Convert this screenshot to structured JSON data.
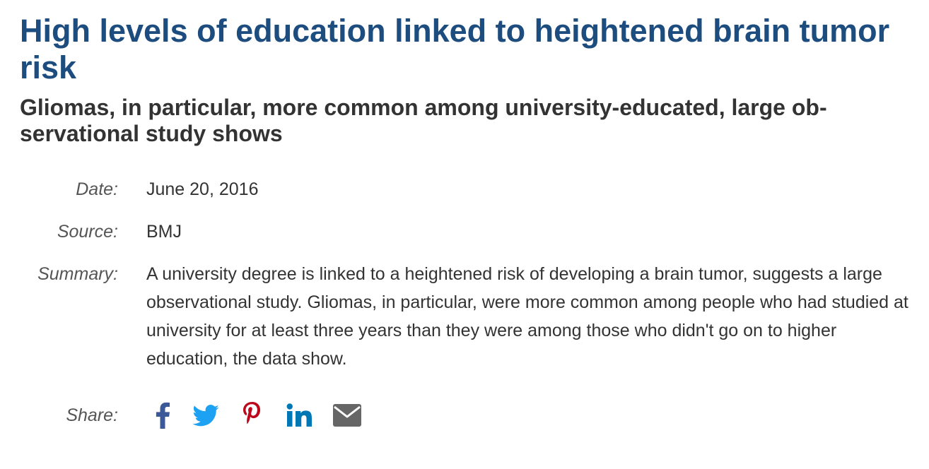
{
  "article": {
    "headline": "High levels of education linked to heightened brain tumor risk",
    "subheadline": "Gliomas, in particular, more common among university-educated, large ob­servational study shows"
  },
  "meta": {
    "date_label": "Date:",
    "date_value": "June 20, 2016",
    "source_label": "Source:",
    "source_value": "BMJ",
    "summary_label": "Summary:",
    "summary_value": "A university degree is linked to a heightened risk of developing a brain tumor, suggests a large observational study. Gliomas, in particular, were more common among people who had studied at university for at least three years than they were among those who didn't go on to higher education, the data show.",
    "share_label": "Share:"
  },
  "share": {
    "icons": [
      "facebook-icon",
      "twitter-icon",
      "pinterest-icon",
      "linkedin-icon",
      "email-icon"
    ],
    "colors": {
      "facebook": "#3b5998",
      "twitter": "#1da1f2",
      "pinterest": "#bd081c",
      "linkedin": "#0077b5",
      "email": "#666666"
    }
  },
  "colors": {
    "headline": "#1d4d7f",
    "subheadline": "#333333",
    "label": "#555555",
    "text": "#333333"
  }
}
